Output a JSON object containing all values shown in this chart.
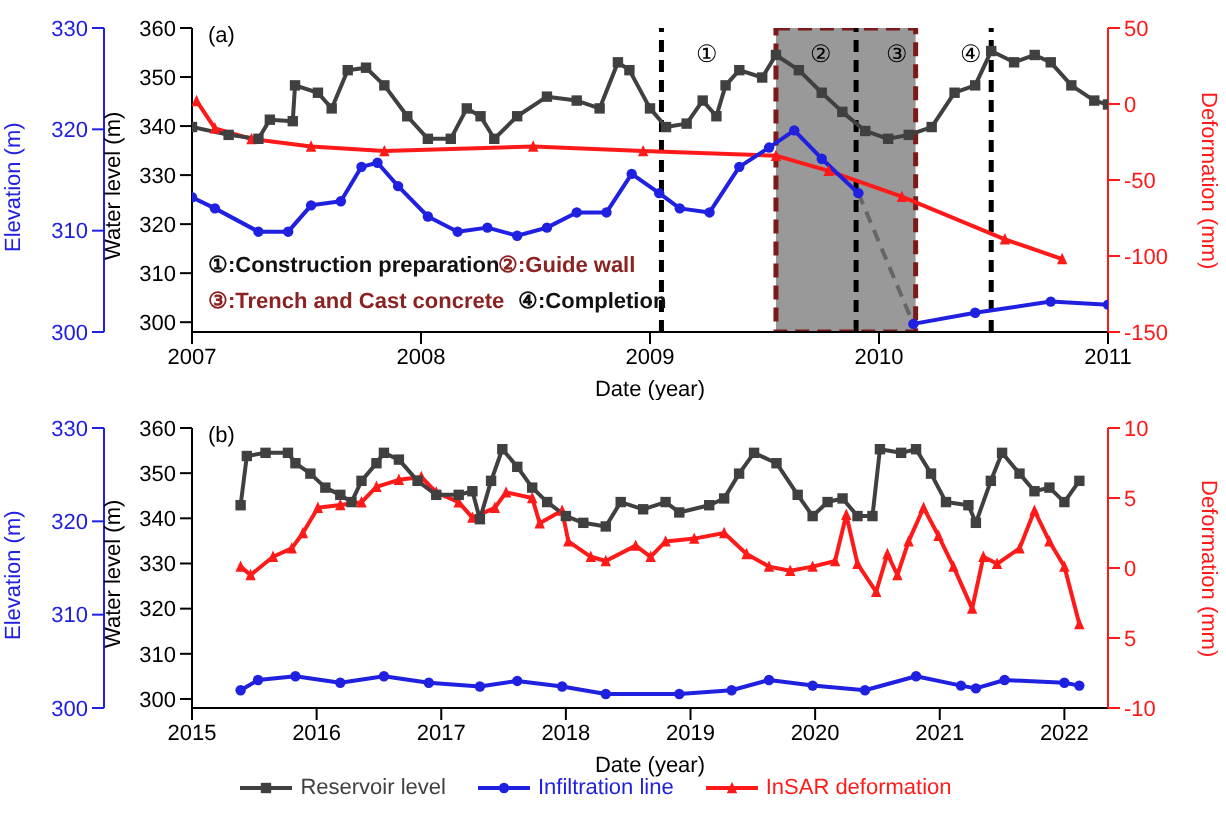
{
  "chart_data": [
    {
      "type": "line",
      "xlabel": "Date (year)",
      "ylabel": "Water level (m)",
      "y2label": "Deformation (mm)",
      "y3label": "Elevation (m)",
      "xlim": [
        2007,
        2011
      ],
      "xticks": [
        2007,
        2008,
        2009,
        2010,
        2011
      ],
      "ylim": [
        298,
        360
      ],
      "yticks": [
        300,
        310,
        320,
        330,
        340,
        350,
        360
      ],
      "y2lim": [
        -150,
        50
      ],
      "y2ticks": [
        -150,
        -100,
        -50,
        0,
        50
      ],
      "y3lim": [
        300,
        330
      ],
      "y3ticks": [
        300,
        310,
        320,
        330
      ],
      "legend": false,
      "series": [
        {
          "color": "#404040",
          "marker": "square",
          "axis": "y",
          "x": [
            2007.0,
            2007.16,
            2007.29,
            2007.34,
            2007.44,
            2007.45,
            2007.55,
            2007.61,
            2007.68,
            2007.76,
            2007.84,
            2007.94,
            2008.03,
            2008.13,
            2008.2,
            2008.26,
            2008.32,
            2008.42,
            2008.55,
            2008.68,
            2008.78,
            2008.86,
            2008.91,
            2009.0,
            2009.07,
            2009.16,
            2009.23,
            2009.29,
            2009.33,
            2009.39,
            2009.49,
            2009.55,
            2009.65,
            2009.75,
            2009.84,
            2009.94,
            2010.04,
            2010.13,
            2010.23,
            2010.33,
            2010.42,
            2010.49,
            2010.59,
            2010.68,
            2010.75,
            2010.84,
            2010.94,
            2011.0
          ],
          "values": [
            339.8,
            338.2,
            337.4,
            341.3,
            341,
            348.3,
            346.8,
            343.6,
            351.4,
            351.9,
            348.3,
            342,
            337.4,
            337.4,
            343.6,
            342,
            337.4,
            342,
            346,
            345.2,
            343.6,
            353,
            351.4,
            343.6,
            339.8,
            340.5,
            345.2,
            342,
            348.3,
            351.4,
            349.9,
            354.5,
            351.4,
            346.8,
            342.9,
            339,
            337.4,
            338.2,
            339.8,
            346.8,
            348.3,
            355.3,
            353,
            354.5,
            353,
            348.3,
            345.2,
            344.4
          ]
        },
        {
          "color": "#2020e0",
          "marker": "circle",
          "axis": "y3",
          "x": [
            2007.0,
            2007.1,
            2007.29,
            2007.42,
            2007.52,
            2007.65,
            2007.74,
            2007.81,
            2007.9,
            2008.03,
            2008.16,
            2008.29,
            2008.42,
            2008.55,
            2008.68,
            2008.81,
            2008.92,
            2009.04,
            2009.13,
            2009.26,
            2009.39,
            2009.52,
            2009.63,
            2009.75,
            2009.91
          ],
          "values": [
            313.3,
            312.2,
            309.9,
            309.9,
            312.5,
            312.9,
            316.3,
            316.7,
            314.4,
            311.4,
            309.9,
            310.3,
            309.5,
            310.3,
            311.8,
            311.8,
            315.6,
            313.7,
            312.2,
            311.8,
            316.3,
            318.2,
            319.9,
            317.1,
            313.7
          ]
        },
        {
          "color": "#666666",
          "line_style": "dashed",
          "axis": "y3",
          "x": [
            2009.91,
            2010.15
          ],
          "values": [
            313.7,
            300.8
          ]
        },
        {
          "color": "#2020e0",
          "marker": "circle",
          "axis": "y3",
          "x": [
            2010.15,
            2010.42,
            2010.75,
            2011.0
          ],
          "values": [
            300.8,
            301.9,
            303,
            302.7
          ]
        },
        {
          "color": "#ff1a1a",
          "marker": "triangle",
          "axis": "y2",
          "x": [
            2007.02,
            2007.1,
            2007.26,
            2007.52,
            2007.84,
            2008.49,
            2008.97,
            2009.55,
            2009.78,
            2010.1,
            2010.55,
            2010.8
          ],
          "values": [
            2,
            -16,
            -23,
            -28,
            -31,
            -28,
            -31,
            -34,
            -44,
            -61,
            -89,
            -102
          ]
        }
      ],
      "bands": [
        {
          "axis": "x",
          "from": 2009.55,
          "to": 2010.16,
          "color": "#999999"
        }
      ],
      "ref_lines": [
        {
          "axis": "x",
          "value": 2009.05,
          "line_style": "dashed",
          "color": "#000000"
        },
        {
          "axis": "x",
          "value": 2009.9,
          "line_style": "dashed",
          "color": "#000000"
        },
        {
          "axis": "x",
          "value": 2010.49,
          "line_style": "dashed",
          "color": "#000000"
        }
      ],
      "annotations": [
        "(a)",
        "①:Construction preparation",
        "②:Guide wall",
        "③:Trench and Cast concrete",
        "④:Completion",
        "①",
        "②",
        "③",
        "④"
      ]
    },
    {
      "type": "line",
      "xlabel": "Date (year)",
      "ylabel": "Water level (m)",
      "y2label": "Deformation (mm)",
      "y3label": "Elevation (m)",
      "xlim": [
        2015,
        2022.35
      ],
      "xticks": [
        2015,
        2016,
        2017,
        2018,
        2019,
        2020,
        2021,
        2022
      ],
      "ylim": [
        298,
        360
      ],
      "yticks": [
        300,
        310,
        320,
        330,
        340,
        350,
        360
      ],
      "y2lim": [
        -10,
        10
      ],
      "y2ticks": [
        -10,
        {
          "value": -5,
          "label": "5"
        },
        0,
        5,
        10
      ],
      "y3lim": [
        300,
        330
      ],
      "y3ticks": [
        300,
        310,
        320,
        330
      ],
      "legend": "bottom",
      "series": [
        {
          "name": "Reservoir level",
          "color": "#404040",
          "marker": "square",
          "axis": "y",
          "x": [
            2015.39,
            2015.44,
            2015.59,
            2015.77,
            2015.83,
            2015.95,
            2016.07,
            2016.19,
            2016.28,
            2016.36,
            2016.48,
            2016.54,
            2016.66,
            2016.81,
            2016.96,
            2017.14,
            2017.25,
            2017.31,
            2017.4,
            2017.49,
            2017.61,
            2017.73,
            2017.85,
            2018.0,
            2018.14,
            2018.32,
            2018.44,
            2018.62,
            2018.8,
            2018.91,
            2019.15,
            2019.27,
            2019.39,
            2019.51,
            2019.69,
            2019.86,
            2019.98,
            2020.1,
            2020.22,
            2020.34,
            2020.46,
            2020.52,
            2020.69,
            2020.81,
            2020.93,
            2021.05,
            2021.23,
            2021.29,
            2021.41,
            2021.5,
            2021.64,
            2021.76,
            2021.88,
            2022.0,
            2022.12
          ],
          "values": [
            342.9,
            353.8,
            354.5,
            354.5,
            352.2,
            349.9,
            346.8,
            345.2,
            343.6,
            348.3,
            352.2,
            354.5,
            353,
            348.3,
            345.2,
            345.2,
            346,
            339.8,
            348.3,
            355.3,
            351.4,
            346.8,
            343.6,
            340.5,
            339,
            338.2,
            343.6,
            342,
            343.6,
            341.3,
            342.9,
            344.4,
            349.9,
            354.5,
            352.2,
            345.2,
            340.5,
            343.6,
            344.4,
            340.5,
            340.5,
            355.3,
            354.5,
            355.3,
            349.9,
            343.6,
            342.9,
            339,
            348.3,
            354.5,
            349.9,
            346,
            346.8,
            343.6,
            348.3
          ]
        },
        {
          "name": "Infiltration line",
          "color": "#2020e0",
          "marker": "circle",
          "axis": "y3",
          "x": [
            2015.39,
            2015.53,
            2015.83,
            2016.19,
            2016.54,
            2016.9,
            2017.31,
            2017.61,
            2017.97,
            2018.32,
            2018.91,
            2019.33,
            2019.63,
            2019.98,
            2020.4,
            2020.81,
            2021.17,
            2021.29,
            2021.52,
            2022.0,
            2022.12
          ],
          "values": [
            301.9,
            303,
            303.4,
            302.7,
            303.4,
            302.7,
            302.3,
            302.9,
            302.3,
            301.5,
            301.5,
            301.9,
            303,
            302.4,
            301.9,
            303.4,
            302.4,
            302.1,
            303,
            302.7,
            302.4
          ]
        },
        {
          "name": "InSAR deformation",
          "color": "#ff1a1a",
          "marker": "triangle",
          "axis": "y2",
          "x": [
            2015.39,
            2015.47,
            2015.65,
            2015.8,
            2015.89,
            2016.01,
            2016.19,
            2016.36,
            2016.48,
            2016.66,
            2016.84,
            2016.96,
            2017.14,
            2017.25,
            2017.43,
            2017.52,
            2017.73,
            2017.79,
            2017.97,
            2018.02,
            2018.2,
            2018.32,
            2018.56,
            2018.68,
            2018.8,
            2019.03,
            2019.27,
            2019.45,
            2019.63,
            2019.8,
            2019.98,
            2020.16,
            2020.25,
            2020.34,
            2020.49,
            2020.58,
            2020.66,
            2020.75,
            2020.87,
            2020.99,
            2021.11,
            2021.26,
            2021.35,
            2021.46,
            2021.64,
            2021.76,
            2021.88,
            2022.0,
            2022.12
          ],
          "values": [
            0.1,
            -0.5,
            0.8,
            1.4,
            2.5,
            4.3,
            4.5,
            4.7,
            5.8,
            6.3,
            6.5,
            5.4,
            4.7,
            3.6,
            4.3,
            5.4,
            5,
            3.2,
            4.1,
            1.9,
            0.8,
            0.5,
            1.6,
            0.8,
            1.9,
            2.1,
            2.5,
            1,
            0.1,
            -0.2,
            0.1,
            0.5,
            3.8,
            0.3,
            -1.7,
            1,
            -0.5,
            1.9,
            4.3,
            2.3,
            0.1,
            -2.9,
            0.8,
            0.3,
            1.4,
            4.1,
            1.9,
            0.1,
            -4
          ]
        }
      ],
      "annotations": [
        "(b)"
      ]
    }
  ]
}
